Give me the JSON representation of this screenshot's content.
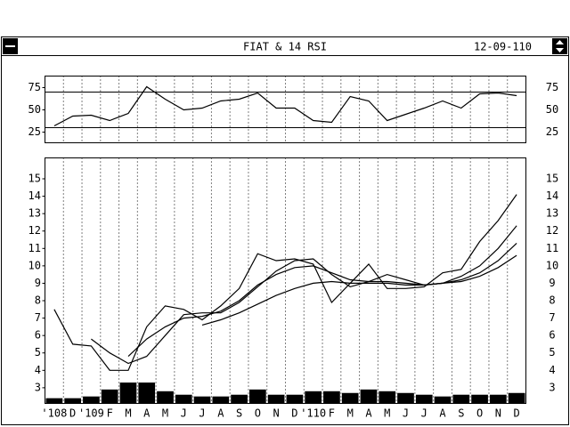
{
  "header": {
    "title": "FIAT & 14 RSI",
    "date": "12-09-110"
  },
  "chart_data": [
    {
      "type": "line",
      "values": [
        32,
        43,
        44,
        38,
        46,
        76,
        62,
        50,
        52,
        60,
        62,
        69,
        52,
        52,
        38,
        36,
        65,
        60,
        38,
        45,
        52,
        60,
        52,
        68,
        69,
        66
      ],
      "color": "#000000",
      "ylim": [
        13,
        88
      ],
      "yticks": [
        25,
        50,
        75
      ],
      "reference_lines": [
        70,
        30
      ],
      "grid": true
    },
    {
      "type": "line",
      "categories": [
        "'108",
        "D",
        "'109",
        "F",
        "M",
        "A",
        "M",
        "J",
        "J",
        "A",
        "S",
        "O",
        "N",
        "D",
        "'110",
        "F",
        "M",
        "A",
        "M",
        "J",
        "J",
        "A",
        "S",
        "O",
        "N",
        "D"
      ],
      "series": [
        {
          "color": "#000000",
          "values": [
            7.5,
            5.5,
            5.4,
            4.0,
            4.0,
            6.5,
            7.7,
            7.5,
            6.9,
            7.7,
            8.7,
            10.7,
            10.3,
            10.4,
            10.1,
            7.9,
            9.0,
            10.1,
            8.7,
            8.7,
            8.8,
            9.6,
            9.8,
            11.4,
            12.6,
            14.1
          ]
        },
        {
          "color": "#000000",
          "values": [
            null,
            null,
            5.8,
            5.0,
            4.4,
            4.8,
            6.0,
            7.2,
            7.3,
            7.3,
            7.9,
            8.8,
            9.7,
            10.3,
            10.4,
            9.5,
            8.8,
            9.1,
            9.5,
            9.2,
            8.9,
            9.0,
            9.4,
            10.0,
            11.0,
            12.3
          ]
        },
        {
          "color": "#000000",
          "values": [
            null,
            null,
            null,
            null,
            4.8,
            5.8,
            6.5,
            7.0,
            7.1,
            7.4,
            8.0,
            8.9,
            9.5,
            9.9,
            10.0,
            9.6,
            9.2,
            9.1,
            9.1,
            9.0,
            8.9,
            9.0,
            9.2,
            9.6,
            10.3,
            11.3
          ]
        },
        {
          "color": "#000000",
          "values": [
            null,
            null,
            null,
            null,
            null,
            null,
            null,
            null,
            6.6,
            6.9,
            7.3,
            7.8,
            8.3,
            8.7,
            9.0,
            9.1,
            9.0,
            9.0,
            9.0,
            8.9,
            8.9,
            9.0,
            9.1,
            9.4,
            9.9,
            10.6
          ]
        },
        {
          "type": "bar",
          "color": "#000000",
          "values": [
            2.4,
            2.4,
            2.5,
            2.9,
            3.3,
            3.3,
            2.8,
            2.6,
            2.5,
            2.5,
            2.6,
            2.9,
            2.6,
            2.6,
            2.8,
            2.8,
            2.7,
            2.9,
            2.8,
            2.7,
            2.6,
            2.5,
            2.6,
            2.6,
            2.6,
            2.7
          ]
        }
      ],
      "ylim": [
        2.1,
        16.2
      ],
      "yticks": [
        3,
        4,
        5,
        6,
        7,
        8,
        9,
        10,
        11,
        12,
        13,
        14,
        15
      ],
      "grid": true
    }
  ]
}
